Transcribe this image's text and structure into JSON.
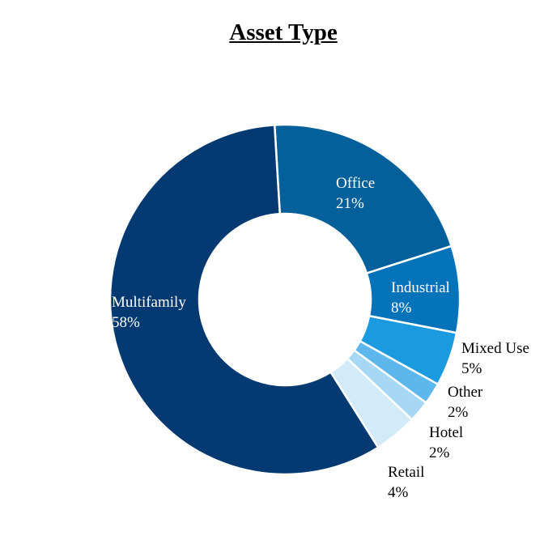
{
  "chart_data": {
    "type": "pie",
    "variant": "donut",
    "title": "Asset Type",
    "slices": [
      {
        "label": "Office",
        "value": 21,
        "value_label": "21%",
        "color": "#04609A",
        "label_color": "#ffffff"
      },
      {
        "label": "Industrial",
        "value": 8,
        "value_label": "8%",
        "color": "#0573B9",
        "label_color": "#ffffff"
      },
      {
        "label": "Mixed Use",
        "value": 5,
        "value_label": "5%",
        "color": "#1B9ADF",
        "label_color": "#000000"
      },
      {
        "label": "Other",
        "value": 2,
        "value_label": "2%",
        "color": "#5DB7EC",
        "label_color": "#000000"
      },
      {
        "label": "Hotel",
        "value": 2,
        "value_label": "2%",
        "color": "#A6D7F5",
        "label_color": "#000000"
      },
      {
        "label": "Retail",
        "value": 4,
        "value_label": "4%",
        "color": "#D3EBF9",
        "label_color": "#000000"
      },
      {
        "label": "Multifamily",
        "value": 58,
        "value_label": "58%",
        "color": "#043A71",
        "label_color": "#ffffff"
      }
    ]
  }
}
